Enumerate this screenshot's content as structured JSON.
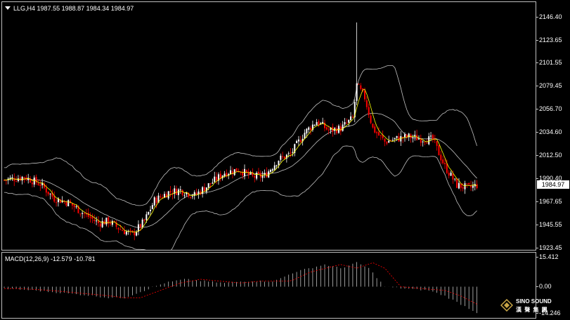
{
  "chart_header": {
    "symbol": "LLG,H4",
    "open": "1987.55",
    "high": "1988.87",
    "low": "1984.34",
    "close": "1984.97"
  },
  "macd_header": {
    "label": "MACD(12,26,9)",
    "main": "-12.579",
    "signal": "-10.781"
  },
  "price_axis": {
    "ticks": [
      "2146.40",
      "2123.65",
      "2101.55",
      "2079.45",
      "2056.70",
      "2034.60",
      "2012.50",
      "1990.40",
      "1967.65",
      "1945.55",
      "1923.45"
    ],
    "current_price": "1984.97"
  },
  "macd_axis": {
    "ticks": [
      "15.412",
      "0.00",
      "-14.246"
    ]
  },
  "logo": {
    "brand": "SINO SOUND",
    "chinese": "漢 聲 集 團"
  },
  "colors": {
    "background": "#000000",
    "bull_candle": "#ffffff",
    "bear_candle": "#ff0000",
    "ma_line": "#ffff00",
    "bollinger": "#c0c0c0",
    "macd_signal": "#ff0000",
    "macd_hist": "#c0c0c0"
  },
  "chart_data": {
    "type": "candlestick",
    "ylim": [
      1923.45,
      2146.4
    ],
    "anchors": [
      [
        0,
        1990
      ],
      [
        10,
        1993
      ],
      [
        18,
        1986
      ],
      [
        25,
        1972
      ],
      [
        32,
        1968
      ],
      [
        40,
        1957
      ],
      [
        47,
        1948
      ],
      [
        52,
        1950
      ],
      [
        58,
        1942
      ],
      [
        64,
        1937
      ],
      [
        70,
        1950
      ],
      [
        75,
        1970
      ],
      [
        82,
        1978
      ],
      [
        88,
        1980
      ],
      [
        95,
        1975
      ],
      [
        102,
        1985
      ],
      [
        110,
        1997
      ],
      [
        117,
        2000
      ],
      [
        124,
        1993
      ],
      [
        130,
        1994
      ],
      [
        137,
        2010
      ],
      [
        143,
        2015
      ],
      [
        150,
        2036
      ],
      [
        156,
        2047
      ],
      [
        162,
        2038
      ],
      [
        168,
        2040
      ],
      [
        174,
        2050
      ],
      [
        176,
        2082
      ],
      [
        180,
        2070
      ],
      [
        184,
        2040
      ],
      [
        190,
        2027
      ],
      [
        196,
        2030
      ],
      [
        202,
        2032
      ],
      [
        208,
        2030
      ],
      [
        214,
        2029
      ],
      [
        220,
        2003
      ],
      [
        226,
        1985
      ],
      [
        232,
        1982
      ],
      [
        236,
        1985
      ]
    ],
    "spike": {
      "index": 176,
      "high": 2143
    },
    "macd_range": [
      -14.246,
      15.412
    ],
    "macd_anchors": [
      [
        0,
        -1
      ],
      [
        15,
        -2
      ],
      [
        25,
        -3
      ],
      [
        35,
        -4
      ],
      [
        45,
        -5
      ],
      [
        52,
        -6
      ],
      [
        60,
        -6
      ],
      [
        70,
        -2
      ],
      [
        80,
        2
      ],
      [
        90,
        4
      ],
      [
        100,
        3
      ],
      [
        110,
        2
      ],
      [
        120,
        3
      ],
      [
        135,
        3
      ],
      [
        145,
        8
      ],
      [
        160,
        12
      ],
      [
        168,
        10
      ],
      [
        176,
        13
      ],
      [
        182,
        10
      ],
      [
        190,
        0
      ],
      [
        200,
        -1
      ],
      [
        212,
        -2
      ],
      [
        220,
        -5
      ],
      [
        236,
        -14
      ]
    ]
  }
}
